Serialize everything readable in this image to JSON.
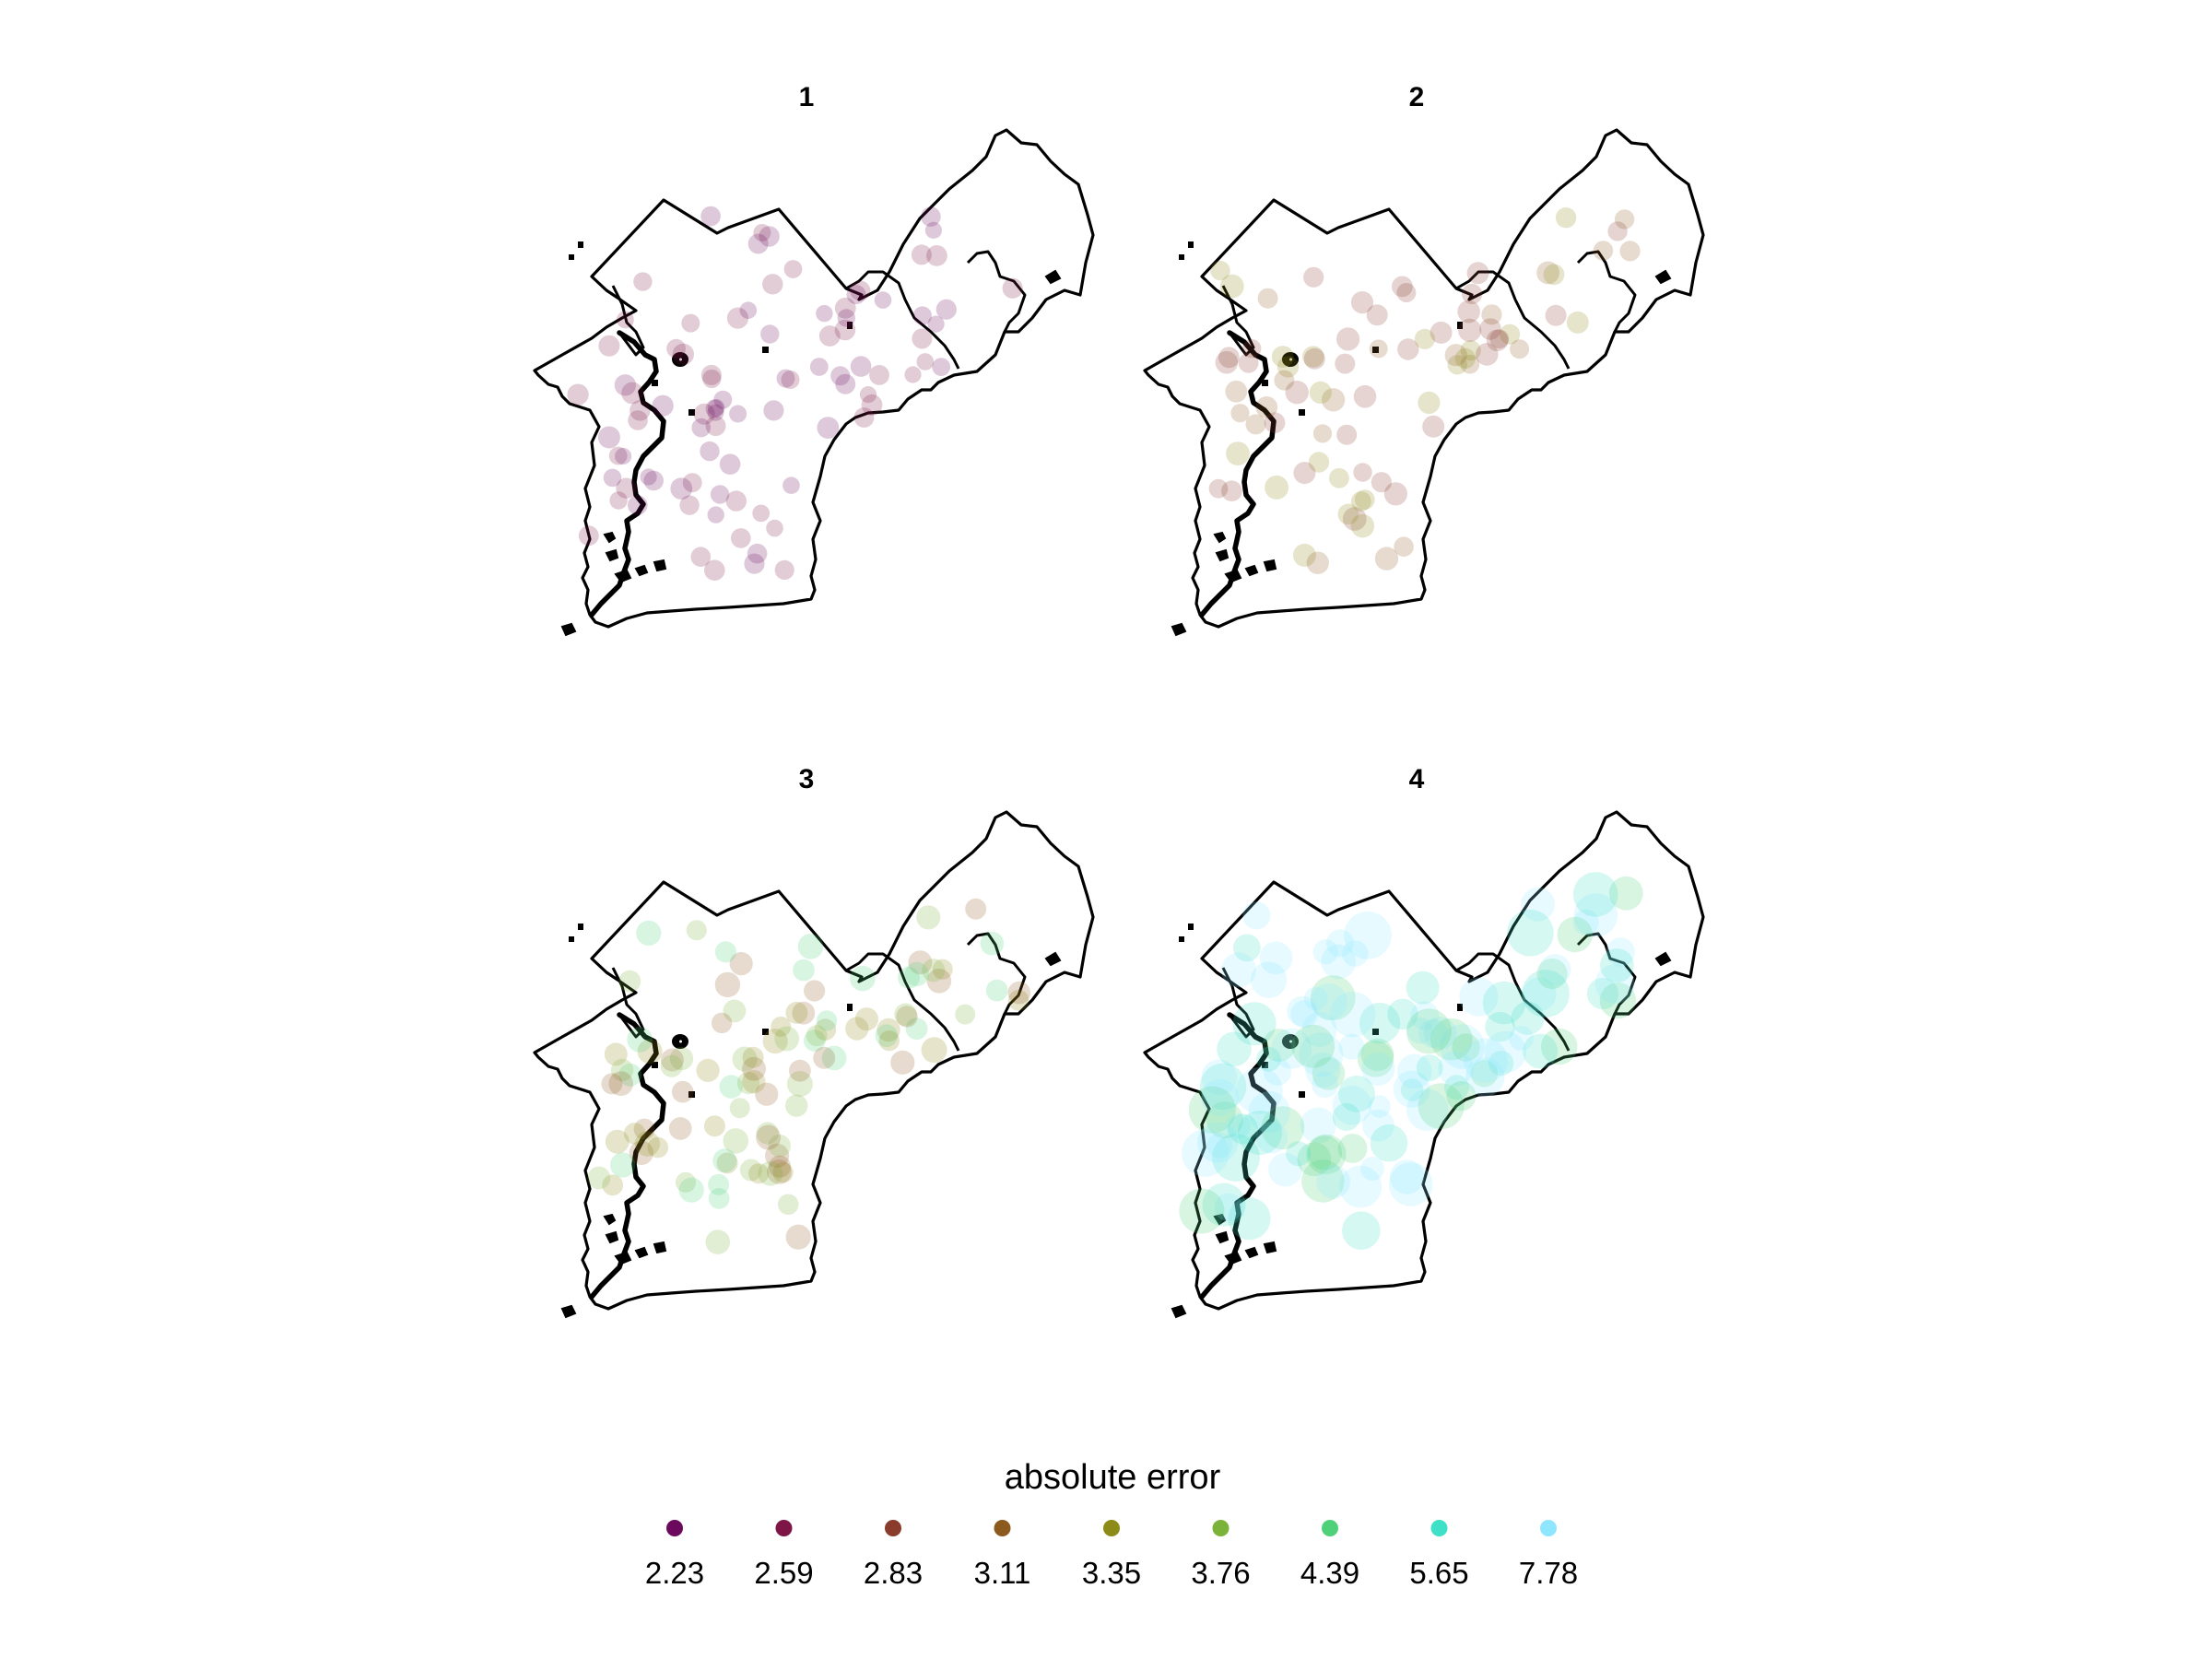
{
  "chart_data": {
    "type": "scatter",
    "subtype": "faceted point map",
    "panels": [
      {
        "title": "1"
      },
      {
        "title": "2"
      },
      {
        "title": "3"
      },
      {
        "title": "4"
      }
    ],
    "legend": {
      "title": "absolute error",
      "placement": "bottom",
      "entries": [
        {
          "label": "2.23",
          "color": "#6b0a5c"
        },
        {
          "label": "2.59",
          "color": "#7d1546"
        },
        {
          "label": "2.83",
          "color": "#8a3c2c"
        },
        {
          "label": "3.11",
          "color": "#8c5a1e"
        },
        {
          "label": "3.35",
          "color": "#8c8a18"
        },
        {
          "label": "3.76",
          "color": "#7bb33a"
        },
        {
          "label": "4.39",
          "color": "#4fd17a"
        },
        {
          "label": "5.65",
          "color": "#3fe0c8"
        },
        {
          "label": "7.78",
          "color": "#8ee6ff"
        }
      ]
    },
    "point_opacity": 0.22
  }
}
